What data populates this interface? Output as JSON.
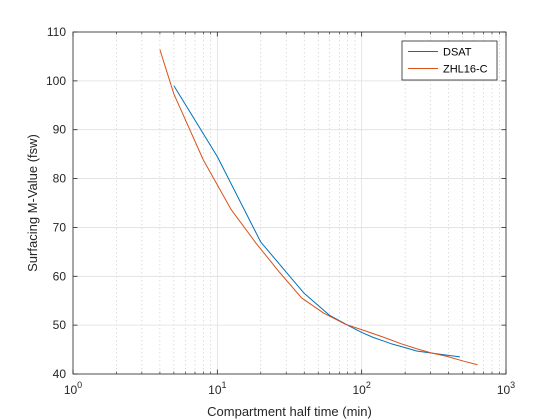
{
  "chart_data": {
    "type": "line",
    "xlabel": "Compartment half time (min)",
    "ylabel": "Surfacing M-Value (fsw)",
    "xscale": "log",
    "xlim": [
      1,
      1000
    ],
    "ylim": [
      40,
      110
    ],
    "xticks": [
      1,
      10,
      100,
      1000
    ],
    "xtick_labels": [
      {
        "base": "10",
        "exp": "0"
      },
      {
        "base": "10",
        "exp": "1"
      },
      {
        "base": "10",
        "exp": "2"
      },
      {
        "base": "10",
        "exp": "3"
      }
    ],
    "yticks": [
      40,
      50,
      60,
      70,
      80,
      90,
      100,
      110
    ],
    "ytick_labels": [
      "40",
      "50",
      "60",
      "70",
      "80",
      "90",
      "100",
      "110"
    ],
    "grid": true,
    "legend_position": "top-right",
    "series": [
      {
        "name": "DSAT",
        "color": "#0072BD",
        "x": [
          5,
          10,
          20,
          40,
          60,
          80,
          100,
          120,
          160,
          200,
          240,
          360,
          480
        ],
        "y": [
          99,
          84.5,
          67,
          56.5,
          52,
          50,
          48.5,
          47.5,
          46.2,
          45.4,
          44.7,
          44,
          43.5
        ]
      },
      {
        "name": "ZHL16-C",
        "color": "#D95319",
        "x": [
          4,
          5,
          8,
          12.5,
          18.5,
          27,
          38.3,
          54.3,
          77,
          109,
          146,
          187,
          239,
          305,
          390,
          498,
          635
        ],
        "y": [
          106.4,
          97.3,
          83.8,
          73.6,
          66.8,
          60.8,
          55.6,
          52.5,
          50.2,
          48.7,
          47.4,
          46.2,
          45.2,
          44.3,
          43.6,
          42.7,
          41.9
        ]
      }
    ]
  }
}
